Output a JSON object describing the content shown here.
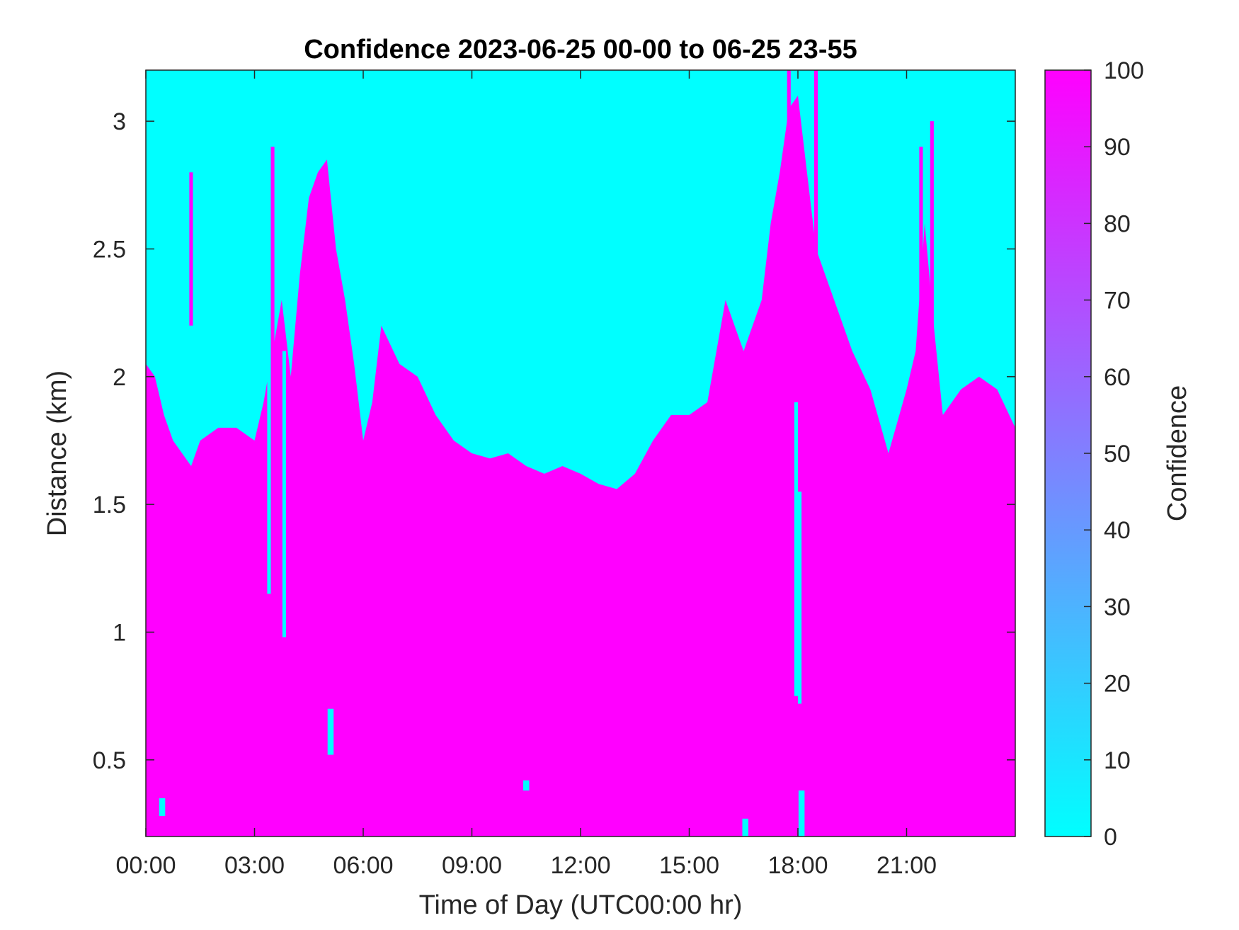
{
  "chart_data": {
    "type": "heatmap",
    "title": "Confidence 2023-06-25 00-00 to 06-25 23-55",
    "xlabel": "Time of Day (UTC00:00 hr)",
    "ylabel": "Distance (km)",
    "colorbar_label": "Confidence",
    "x_unit": "hours",
    "xlim": [
      0,
      24
    ],
    "ylim": [
      0.2,
      3.2
    ],
    "x_ticks": [
      {
        "value": 0,
        "label": "00:00"
      },
      {
        "value": 3,
        "label": "03:00"
      },
      {
        "value": 6,
        "label": "06:00"
      },
      {
        "value": 9,
        "label": "09:00"
      },
      {
        "value": 12,
        "label": "12:00"
      },
      {
        "value": 15,
        "label": "15:00"
      },
      {
        "value": 18,
        "label": "18:00"
      },
      {
        "value": 21,
        "label": "21:00"
      }
    ],
    "y_ticks": [
      {
        "value": 0.5,
        "label": "0.5"
      },
      {
        "value": 1,
        "label": "1"
      },
      {
        "value": 1.5,
        "label": "1.5"
      },
      {
        "value": 2,
        "label": "2"
      },
      {
        "value": 2.5,
        "label": "2.5"
      },
      {
        "value": 3,
        "label": "3"
      }
    ],
    "colorbar": {
      "min": 0,
      "max": 100,
      "min_color": "#00FFFF",
      "max_color": "#FF00FF",
      "ticks": [
        {
          "value": 0,
          "label": "0"
        },
        {
          "value": 10,
          "label": "10"
        },
        {
          "value": 20,
          "label": "20"
        },
        {
          "value": 30,
          "label": "30"
        },
        {
          "value": 40,
          "label": "40"
        },
        {
          "value": 50,
          "label": "50"
        },
        {
          "value": 60,
          "label": "60"
        },
        {
          "value": 70,
          "label": "70"
        },
        {
          "value": 80,
          "label": "80"
        },
        {
          "value": 90,
          "label": "90"
        },
        {
          "value": 100,
          "label": "100"
        }
      ]
    },
    "boundary": {
      "description_values": "distance (km) below which confidence = 100, above which confidence = 0",
      "time_hours": [
        0,
        0.25,
        0.5,
        0.75,
        1.0,
        1.25,
        1.5,
        2.0,
        2.5,
        3.0,
        3.25,
        3.5,
        3.75,
        4.0,
        4.25,
        4.5,
        4.75,
        5.0,
        5.25,
        5.5,
        5.75,
        6.0,
        6.25,
        6.5,
        7.0,
        7.5,
        8.0,
        8.5,
        9.0,
        9.5,
        10.0,
        10.5,
        11.0,
        11.5,
        12.0,
        12.5,
        13.0,
        13.5,
        14.0,
        14.5,
        15.0,
        15.5,
        16.0,
        16.5,
        17.0,
        17.25,
        17.5,
        17.75,
        18.0,
        18.25,
        18.5,
        19.0,
        19.5,
        20.0,
        20.5,
        21.0,
        21.25,
        21.5,
        21.75,
        22.0,
        22.5,
        23.0,
        23.5,
        24.0
      ],
      "distance_km": [
        2.05,
        2.0,
        1.85,
        1.75,
        1.7,
        1.65,
        1.75,
        1.8,
        1.8,
        1.75,
        1.9,
        2.1,
        2.3,
        2.0,
        2.4,
        2.7,
        2.8,
        2.85,
        2.5,
        2.3,
        2.05,
        1.75,
        1.9,
        2.2,
        2.05,
        2.0,
        1.85,
        1.75,
        1.7,
        1.68,
        1.7,
        1.65,
        1.62,
        1.65,
        1.62,
        1.58,
        1.56,
        1.62,
        1.75,
        1.85,
        1.85,
        1.9,
        2.3,
        2.1,
        2.3,
        2.6,
        2.8,
        3.05,
        3.1,
        2.8,
        2.5,
        2.3,
        2.1,
        1.95,
        1.7,
        1.95,
        2.1,
        2.6,
        2.2,
        1.85,
        1.95,
        2.0,
        1.95,
        1.8
      ]
    },
    "features": [
      {
        "kind": "low_confidence_column",
        "time_hours": 3.4,
        "distance_km": [
          1.15,
          2.2
        ]
      },
      {
        "kind": "low_confidence_column",
        "time_hours": 3.82,
        "distance_km": [
          0.98,
          2.1
        ]
      },
      {
        "kind": "low_confidence_column",
        "time_hours": 17.95,
        "distance_km": [
          0.75,
          1.9
        ]
      },
      {
        "kind": "low_confidence_column",
        "time_hours": 18.05,
        "distance_km": [
          0.72,
          1.55
        ]
      },
      {
        "kind": "low_confidence_patch",
        "time_hours": 5.1,
        "distance_km": [
          0.52,
          0.7
        ]
      },
      {
        "kind": "low_confidence_patch",
        "time_hours": 10.5,
        "distance_km": [
          0.38,
          0.42
        ]
      },
      {
        "kind": "low_confidence_patch",
        "time_hours": 18.1,
        "distance_km": [
          0.2,
          0.38
        ]
      },
      {
        "kind": "low_confidence_patch",
        "time_hours": 16.55,
        "distance_km": [
          0.2,
          0.27
        ]
      },
      {
        "kind": "low_confidence_patch",
        "time_hours": 0.45,
        "distance_km": [
          0.28,
          0.35
        ]
      },
      {
        "kind": "high_confidence_streak",
        "time_hours": 1.25,
        "distance_km": [
          2.2,
          2.8
        ]
      },
      {
        "kind": "high_confidence_streak",
        "time_hours": 3.5,
        "distance_km": [
          2.0,
          2.9
        ]
      },
      {
        "kind": "high_confidence_streak",
        "time_hours": 17.75,
        "distance_km": [
          2.0,
          3.2
        ]
      },
      {
        "kind": "high_confidence_streak",
        "time_hours": 18.5,
        "distance_km": [
          2.2,
          3.2
        ]
      },
      {
        "kind": "high_confidence_streak",
        "time_hours": 21.4,
        "distance_km": [
          1.9,
          2.9
        ]
      },
      {
        "kind": "high_confidence_streak",
        "time_hours": 21.7,
        "distance_km": [
          2.0,
          3.0
        ]
      }
    ],
    "grid": false
  }
}
